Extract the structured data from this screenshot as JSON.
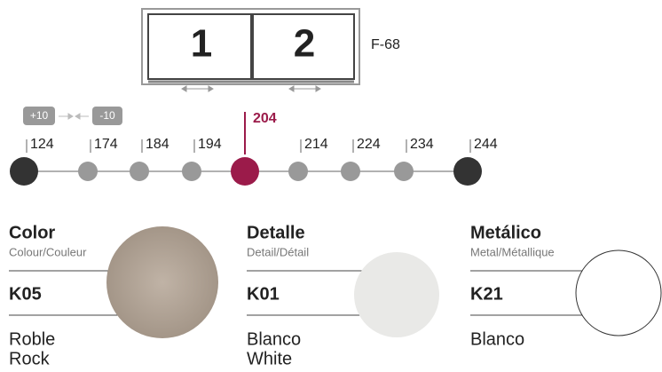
{
  "diagram": {
    "panels": [
      "1",
      "2"
    ],
    "model": "F-68"
  },
  "steps": {
    "increase": "+10",
    "decrease": "-10"
  },
  "sizes": {
    "options": [
      "124",
      "174",
      "184",
      "194",
      "204",
      "214",
      "224",
      "234",
      "244"
    ],
    "selected_index": 4
  },
  "swatches": [
    {
      "title": "Color",
      "subtitle": "Colour/Couleur",
      "code": "K05",
      "name": [
        "Roble",
        "Rock"
      ],
      "color": "#b3a598"
    },
    {
      "title": "Detalle",
      "subtitle": "Detail/Détail",
      "code": "K01",
      "name": [
        "Blanco",
        "White"
      ],
      "color": "#e9e9e7"
    },
    {
      "title": "Metálico",
      "subtitle": "Metal/Métallique",
      "code": "K21",
      "name": [
        "Blanco"
      ],
      "color": "#ffffff"
    }
  ]
}
